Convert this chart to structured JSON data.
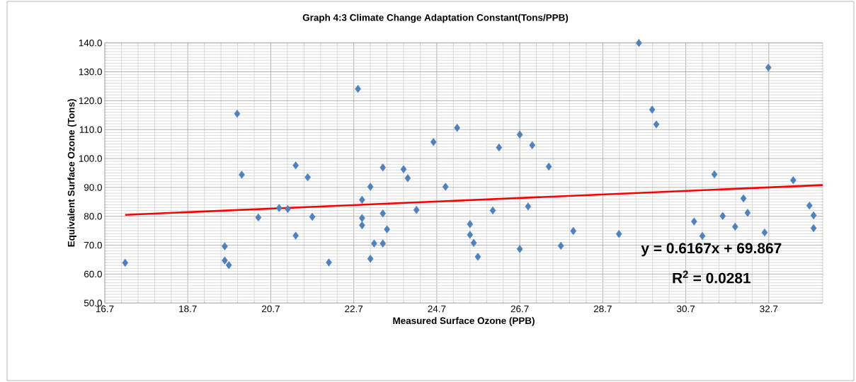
{
  "chart_data": {
    "type": "scatter",
    "title": "Graph 4:3 Climate Change Adaptation Constant(Tons/PPB)",
    "xlabel": "Measured Surface Ozone (PPB)",
    "ylabel": "Equivalent Surface Ozone (Tons)",
    "xlim": [
      16.7,
      34.0
    ],
    "xticks": [
      16.7,
      18.7,
      20.7,
      22.7,
      24.7,
      26.7,
      28.7,
      30.7,
      32.7
    ],
    "ylim": [
      50,
      140
    ],
    "yticks": [
      {
        "value": 50,
        "label": "50.0"
      },
      {
        "value": 60,
        "label": "60.0"
      },
      {
        "value": 70,
        "label": "70.0"
      },
      {
        "value": 80,
        "label": "80.0"
      },
      {
        "value": 90,
        "label": "90.0"
      },
      {
        "value": 100,
        "label": "100.0"
      },
      {
        "value": 110,
        "label": "110.0"
      },
      {
        "value": 120,
        "label": "120.0"
      },
      {
        "value": 130,
        "label": "130.0"
      },
      {
        "value": 140,
        "label": "140.0"
      }
    ],
    "grid": true,
    "marker": "diamond",
    "annotations": [
      "y = 0.6167x + 69.867",
      "R$^{2}$ = 0.0281"
    ],
    "series": [
      {
        "color": "#4f81bd",
        "x": [
          17.19,
          19.59,
          19.59,
          19.69,
          19.89,
          20.0,
          20.4,
          20.9,
          21.11,
          21.3,
          21.3,
          21.59,
          21.7,
          22.1,
          22.8,
          22.9,
          22.9,
          22.9,
          23.1,
          23.1,
          23.19,
          23.4,
          23.4,
          23.4,
          23.5,
          23.9,
          24.0,
          24.21,
          24.62,
          24.91,
          25.19,
          26.2,
          26.7,
          27.0,
          27.4,
          26.05,
          25.5,
          25.5,
          25.59,
          25.69,
          26.9,
          26.7,
          27.69,
          27.99,
          29.09,
          29.57,
          29.89,
          29.99,
          30.9,
          31.1,
          31.39,
          31.59,
          31.89,
          32.09,
          32.19,
          32.6,
          32.69,
          33.29,
          33.68,
          33.78,
          33.78
        ],
        "values": [
          63.9,
          69.6,
          64.7,
          63.1,
          115.5,
          94.4,
          79.6,
          82.9,
          82.5,
          97.6,
          73.3,
          93.5,
          79.8,
          64.0,
          124.1,
          85.7,
          79.4,
          76.9,
          90.2,
          65.3,
          70.6,
          96.9,
          81.0,
          70.6,
          75.5,
          96.3,
          93.2,
          82.2,
          105.7,
          90.2,
          110.6,
          103.8,
          108.3,
          104.6,
          97.2,
          82.0,
          77.3,
          73.6,
          70.8,
          66.0,
          83.4,
          68.7,
          69.8,
          74.9,
          73.9,
          140.0,
          116.9,
          111.8,
          78.2,
          73.2,
          94.5,
          80.1,
          76.4,
          86.2,
          81.2,
          74.4,
          131.5,
          92.5,
          83.7,
          80.3,
          75.9
        ]
      },
      {
        "type": "line",
        "color": "#ff0000",
        "marker": "none",
        "x": [
          17.19,
          34.0
        ],
        "values": [
          80.5,
          90.8
        ]
      }
    ]
  }
}
